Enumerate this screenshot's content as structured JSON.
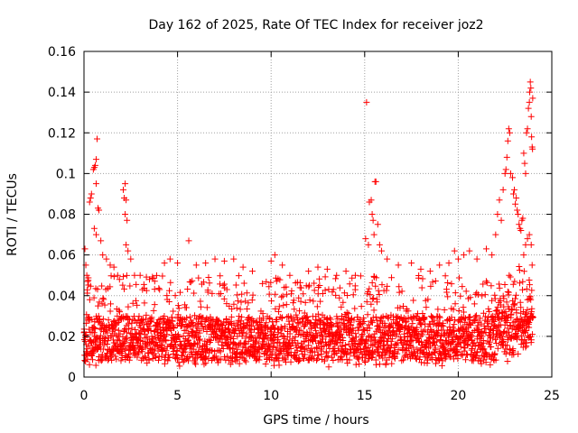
{
  "chart_data": {
    "type": "scatter",
    "title": "Day 162 of 2025, Rate Of TEC Index for receiver joz2",
    "xlabel": "GPS time / hours",
    "ylabel": "ROTI / TECUs",
    "xlim": [
      0,
      25
    ],
    "ylim": [
      0,
      0.16
    ],
    "xticks": [
      0,
      5,
      10,
      15,
      20,
      25
    ],
    "xtick_labels": [
      "0",
      "5",
      "10",
      "15",
      "20",
      "25"
    ],
    "yticks": [
      0,
      0.02,
      0.04,
      0.06,
      0.08,
      0.1,
      0.12,
      0.14,
      0.16
    ],
    "ytick_labels": [
      "0",
      "0.02",
      "0.04",
      "0.06",
      "0.08",
      "0.1",
      "0.12",
      "0.14",
      "0.16"
    ],
    "grid": true,
    "marker": "+",
    "point_color": "#ff0000",
    "series": [
      {
        "name": "ROTI",
        "dense_band": {
          "x_range": [
            0,
            24
          ],
          "y_min": 0.005,
          "y_mode": 0.015,
          "y_max": 0.05
        },
        "points": [
          [
            0.05,
            0.063
          ],
          [
            0.1,
            0.055
          ],
          [
            0.15,
            0.05
          ],
          [
            0.2,
            0.047
          ],
          [
            0.3,
            0.086
          ],
          [
            0.35,
            0.088
          ],
          [
            0.4,
            0.09
          ],
          [
            0.5,
            0.102
          ],
          [
            0.55,
            0.103
          ],
          [
            0.6,
            0.104
          ],
          [
            0.65,
            0.107
          ],
          [
            0.7,
            0.117
          ],
          [
            0.65,
            0.095
          ],
          [
            0.75,
            0.083
          ],
          [
            0.8,
            0.082
          ],
          [
            0.55,
            0.073
          ],
          [
            0.65,
            0.07
          ],
          [
            0.9,
            0.067
          ],
          [
            1.0,
            0.06
          ],
          [
            1.2,
            0.058
          ],
          [
            1.4,
            0.055
          ],
          [
            1.6,
            0.054
          ],
          [
            1.8,
            0.05
          ],
          [
            2.1,
            0.092
          ],
          [
            2.2,
            0.095
          ],
          [
            2.15,
            0.088
          ],
          [
            2.25,
            0.087
          ],
          [
            2.2,
            0.08
          ],
          [
            2.3,
            0.077
          ],
          [
            2.25,
            0.065
          ],
          [
            2.35,
            0.062
          ],
          [
            2.5,
            0.058
          ],
          [
            2.7,
            0.05
          ],
          [
            3.0,
            0.05
          ],
          [
            3.5,
            0.048
          ],
          [
            4.3,
            0.056
          ],
          [
            4.6,
            0.058
          ],
          [
            5.0,
            0.056
          ],
          [
            5.6,
            0.067
          ],
          [
            6.0,
            0.055
          ],
          [
            6.5,
            0.056
          ],
          [
            7.0,
            0.058
          ],
          [
            7.5,
            0.057
          ],
          [
            8.0,
            0.058
          ],
          [
            8.5,
            0.054
          ],
          [
            9.0,
            0.052
          ],
          [
            10.0,
            0.057
          ],
          [
            10.2,
            0.06
          ],
          [
            10.6,
            0.055
          ],
          [
            11.0,
            0.05
          ],
          [
            12.0,
            0.052
          ],
          [
            12.5,
            0.054
          ],
          [
            13.0,
            0.053
          ],
          [
            13.5,
            0.05
          ],
          [
            14.0,
            0.052
          ],
          [
            14.5,
            0.05
          ],
          [
            15.1,
            0.135
          ],
          [
            15.05,
            0.068
          ],
          [
            15.2,
            0.065
          ],
          [
            15.25,
            0.086
          ],
          [
            15.35,
            0.087
          ],
          [
            15.4,
            0.08
          ],
          [
            15.45,
            0.077
          ],
          [
            15.5,
            0.07
          ],
          [
            15.55,
            0.096
          ],
          [
            15.6,
            0.096
          ],
          [
            15.7,
            0.075
          ],
          [
            15.8,
            0.065
          ],
          [
            15.9,
            0.062
          ],
          [
            16.2,
            0.058
          ],
          [
            16.8,
            0.055
          ],
          [
            17.5,
            0.056
          ],
          [
            18.0,
            0.053
          ],
          [
            18.5,
            0.052
          ],
          [
            19.0,
            0.055
          ],
          [
            19.5,
            0.056
          ],
          [
            19.8,
            0.062
          ],
          [
            20.0,
            0.058
          ],
          [
            20.3,
            0.06
          ],
          [
            20.6,
            0.062
          ],
          [
            21.0,
            0.058
          ],
          [
            21.5,
            0.063
          ],
          [
            21.8,
            0.06
          ],
          [
            22.0,
            0.07
          ],
          [
            22.1,
            0.08
          ],
          [
            22.2,
            0.087
          ],
          [
            22.3,
            0.077
          ],
          [
            22.4,
            0.092
          ],
          [
            22.5,
            0.1
          ],
          [
            22.55,
            0.102
          ],
          [
            22.6,
            0.108
          ],
          [
            22.65,
            0.116
          ],
          [
            22.7,
            0.122
          ],
          [
            22.75,
            0.12
          ],
          [
            22.8,
            0.1
          ],
          [
            22.9,
            0.098
          ],
          [
            22.95,
            0.09
          ],
          [
            23.0,
            0.092
          ],
          [
            23.05,
            0.085
          ],
          [
            23.1,
            0.088
          ],
          [
            23.15,
            0.082
          ],
          [
            23.2,
            0.08
          ],
          [
            23.25,
            0.075
          ],
          [
            23.3,
            0.073
          ],
          [
            23.35,
            0.072
          ],
          [
            23.4,
            0.077
          ],
          [
            23.45,
            0.078
          ],
          [
            23.5,
            0.11
          ],
          [
            23.55,
            0.105
          ],
          [
            23.6,
            0.1
          ],
          [
            23.65,
            0.12
          ],
          [
            23.7,
            0.122
          ],
          [
            23.75,
            0.132
          ],
          [
            23.8,
            0.135
          ],
          [
            23.82,
            0.14
          ],
          [
            23.85,
            0.145
          ],
          [
            23.88,
            0.142
          ],
          [
            23.9,
            0.128
          ],
          [
            23.92,
            0.118
          ],
          [
            23.95,
            0.113
          ],
          [
            23.97,
            0.112
          ],
          [
            23.98,
            0.137
          ],
          [
            23.6,
            0.065
          ],
          [
            23.7,
            0.068
          ],
          [
            23.8,
            0.07
          ],
          [
            23.9,
            0.065
          ],
          [
            23.5,
            0.06
          ]
        ]
      }
    ]
  }
}
